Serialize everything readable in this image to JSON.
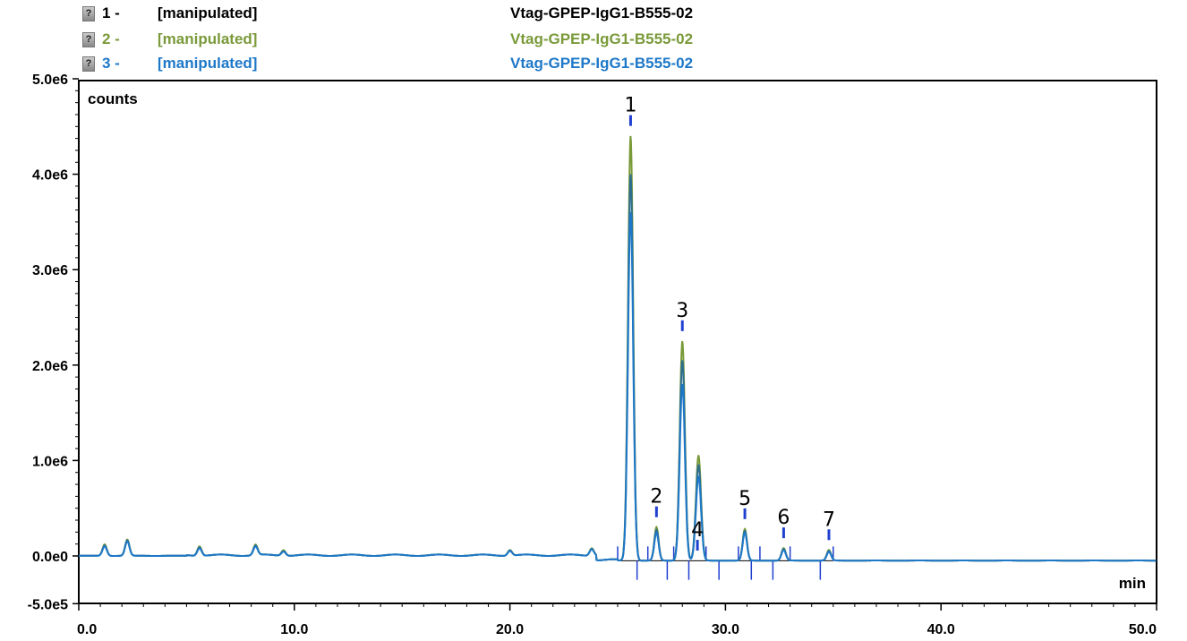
{
  "legend": [
    {
      "id": "1 -",
      "label": "[manipulated]",
      "sample": "Vtag-GPEP-IgG1-B555-02",
      "color": "#000000"
    },
    {
      "id": "2 -",
      "label": "[manipulated]",
      "sample": "Vtag-GPEP-IgG1-B555-02",
      "color": "#7a9a3a"
    },
    {
      "id": "3 -",
      "label": "[manipulated]",
      "sample": "Vtag-GPEP-IgG1-B555-02",
      "color": "#1e78c8"
    }
  ],
  "chart_data": {
    "type": "line",
    "ylabel": "counts",
    "xlabel": "min",
    "xlim": [
      0,
      50
    ],
    "ylim": [
      -500000,
      5000000
    ],
    "x_ticks": [
      "0.0",
      "10.0",
      "20.0",
      "30.0",
      "40.0",
      "50.0"
    ],
    "x_tick_values": [
      0,
      10,
      20,
      30,
      40,
      50
    ],
    "y_ticks": [
      "5.0e6",
      "4.0e6",
      "3.0e6",
      "2.0e6",
      "1.0e6",
      "0.0e0",
      "-5.0e5"
    ],
    "y_tick_values": [
      5000000,
      4000000,
      3000000,
      2000000,
      1000000,
      0,
      -500000
    ],
    "peaks": [
      {
        "label": "1",
        "x": 25.6
      },
      {
        "label": "2",
        "x": 26.8
      },
      {
        "label": "3",
        "x": 28.0
      },
      {
        "label": "4",
        "x": 28.7
      },
      {
        "label": "5",
        "x": 30.9
      },
      {
        "label": "6",
        "x": 32.7
      },
      {
        "label": "7",
        "x": 34.8
      }
    ],
    "series": [
      {
        "color": "#7a9a3a",
        "points": [
          [
            0,
            0
          ],
          [
            1.2,
            120000
          ],
          [
            2.25,
            170000
          ],
          [
            5.6,
            100000
          ],
          [
            8.2,
            110000
          ],
          [
            9.5,
            60000
          ],
          [
            20.0,
            60000
          ],
          [
            23.8,
            80000
          ],
          [
            25.6,
            4450000
          ],
          [
            26.8,
            350000
          ],
          [
            28.0,
            2300000
          ],
          [
            28.75,
            1100000
          ],
          [
            30.9,
            330000
          ],
          [
            32.7,
            130000
          ],
          [
            34.8,
            110000
          ],
          [
            50,
            -50000
          ]
        ]
      },
      {
        "color": "#2e6f8e",
        "points": [
          [
            0,
            0
          ],
          [
            1.2,
            110000
          ],
          [
            2.25,
            160000
          ],
          [
            5.6,
            90000
          ],
          [
            8.2,
            100000
          ],
          [
            9.5,
            50000
          ],
          [
            20.0,
            55000
          ],
          [
            23.8,
            75000
          ],
          [
            25.6,
            4050000
          ],
          [
            26.8,
            320000
          ],
          [
            28.0,
            2100000
          ],
          [
            28.75,
            1000000
          ],
          [
            30.9,
            310000
          ],
          [
            32.7,
            120000
          ],
          [
            34.8,
            100000
          ],
          [
            50,
            -50000
          ]
        ]
      },
      {
        "color": "#1e78c8",
        "points": [
          [
            0,
            0
          ],
          [
            1.2,
            100000
          ],
          [
            2.25,
            150000
          ],
          [
            5.6,
            80000
          ],
          [
            8.2,
            90000
          ],
          [
            9.5,
            45000
          ],
          [
            20.0,
            50000
          ],
          [
            23.8,
            70000
          ],
          [
            25.6,
            3650000
          ],
          [
            26.8,
            290000
          ],
          [
            28.0,
            1850000
          ],
          [
            28.75,
            880000
          ],
          [
            30.9,
            290000
          ],
          [
            32.7,
            110000
          ],
          [
            34.8,
            90000
          ],
          [
            50,
            -50000
          ]
        ]
      }
    ]
  }
}
